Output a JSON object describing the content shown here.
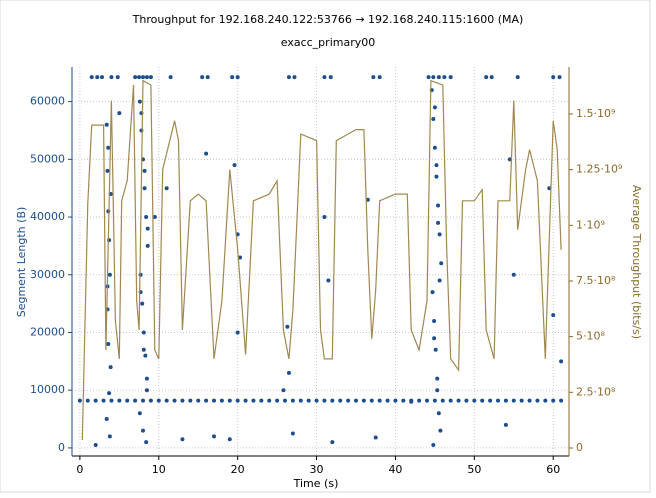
{
  "chart_data": {
    "type": "scatter",
    "title": "Throughput for 192.168.240.122:53766 → 192.168.240.115:1600 (MA)",
    "subtitle": "exacc_primary00",
    "x_label": "Time (s)",
    "y_label": "Segment Length (B)",
    "y2_label": "Average Throughput (bits/s)",
    "xlim": [
      -1,
      62
    ],
    "xticks": [
      0,
      10,
      20,
      30,
      40,
      50,
      60
    ],
    "ylim": [
      -1400,
      66000
    ],
    "yticks": [
      0,
      10000,
      20000,
      30000,
      40000,
      50000,
      60000
    ],
    "y2lim": [
      -36000000,
      1711000000
    ],
    "y2ticks": [
      0,
      {
        "value": 250000000,
        "label": "2.5·10⁸"
      },
      {
        "value": 500000000,
        "label": "5·10⁸"
      },
      {
        "value": 750000000,
        "label": "7.5·10⁸"
      },
      {
        "value": 1000000000,
        "label": "1·10⁹"
      },
      {
        "value": 1250000000,
        "label": "1.25·10⁹"
      },
      {
        "value": 1500000000,
        "label": "1.5·10⁹"
      }
    ],
    "grid": true,
    "series": [
      {
        "type": "scatter",
        "color": "#1f4e8c",
        "x": [
          0,
          1,
          2,
          3,
          4,
          5,
          6,
          7,
          8,
          9,
          10,
          11,
          12,
          13,
          14,
          15,
          16,
          17,
          18,
          19,
          20,
          21,
          22,
          23,
          24,
          25,
          26,
          27,
          28,
          29,
          30,
          31,
          32,
          33,
          34,
          35,
          36,
          37,
          38,
          39,
          40,
          41,
          42,
          43,
          44,
          45,
          46,
          47,
          48,
          49,
          50,
          51,
          52,
          53,
          54,
          55,
          56,
          57,
          58,
          59,
          60,
          61,
          1.5,
          2.2,
          2.8,
          4.0,
          4.8,
          7.0,
          7.5,
          8.0,
          8.5,
          9.0,
          11.5,
          15.5,
          16.2,
          19.3,
          20.0,
          26.5,
          27.2,
          31.0,
          31.8,
          37.2,
          38.0,
          44.2,
          44.8,
          45.5,
          46.2,
          47.0,
          51.5,
          52.2,
          55.5,
          60.0,
          60.8,
          3.4,
          3.5,
          3.6,
          3.7,
          3.8,
          3.5,
          3.6,
          3.9,
          3.7,
          3.4,
          3.8,
          3.6,
          3.5,
          3.9,
          7.6,
          7.8,
          8.0,
          8.2,
          8.4,
          8.6,
          7.7,
          7.9,
          8.1,
          8.3,
          8.5,
          7.6,
          8.0,
          8.4,
          7.8,
          8.2,
          8.6,
          7.7,
          8.1,
          8.5,
          44.6,
          44.8,
          45.0,
          45.2,
          45.4,
          45.6,
          45.8,
          44.7,
          44.9,
          45.1,
          45.3,
          45.5,
          45.7,
          44.8,
          45.0,
          45.2,
          45.4,
          45.6,
          44.9,
          45.3,
          19.6,
          20.0,
          20.0,
          19.0,
          26.3,
          26.5,
          27.0,
          31.0,
          31.5,
          32.0,
          36.5,
          37.5,
          25.8,
          55.0,
          54.5,
          54.0,
          60.0,
          59.5,
          61.0,
          17.0,
          13.0,
          11.0,
          16.0,
          2.0,
          5.0,
          9.5,
          20.3,
          42.0
        ],
        "values": [
          8192,
          8192,
          8192,
          8192,
          8192,
          8192,
          8192,
          8192,
          8192,
          8192,
          8192,
          8192,
          8192,
          8192,
          8192,
          8192,
          8192,
          8192,
          8192,
          8192,
          8192,
          8192,
          8192,
          8192,
          8192,
          8192,
          8192,
          8192,
          8192,
          8192,
          8192,
          8192,
          8192,
          8192,
          8192,
          8192,
          8192,
          8192,
          8192,
          8192,
          8192,
          8192,
          8192,
          8192,
          8192,
          8192,
          8192,
          8192,
          8192,
          8192,
          8192,
          8192,
          8192,
          8192,
          8192,
          8192,
          8192,
          8192,
          8192,
          8192,
          8192,
          8192,
          64240,
          64240,
          64240,
          64240,
          64240,
          64240,
          64240,
          64240,
          64240,
          64240,
          64240,
          64240,
          64240,
          64240,
          64240,
          64240,
          64240,
          64240,
          64240,
          64240,
          64240,
          64240,
          64240,
          64240,
          64240,
          64240,
          64240,
          64240,
          64240,
          64240,
          64240,
          56000,
          48000,
          41000,
          36000,
          30000,
          24000,
          18000,
          14000,
          9500,
          5000,
          2000,
          52000,
          28000,
          44000,
          60000,
          55000,
          50000,
          45000,
          40000,
          35000,
          30000,
          25000,
          20000,
          16000,
          12000,
          6000,
          3000,
          1000,
          58000,
          48000,
          38000,
          27000,
          17000,
          10000,
          62000,
          57000,
          52000,
          47000,
          42000,
          37000,
          32000,
          27000,
          22000,
          17000,
          12000,
          6000,
          3000,
          500,
          59000,
          49000,
          39000,
          29000,
          19000,
          10000,
          49000,
          37000,
          20000,
          1500,
          21000,
          13000,
          2500,
          40000,
          29000,
          1000,
          43000,
          1800,
          10000,
          30000,
          50000,
          4000,
          23000,
          45000,
          15000,
          2000,
          1500,
          45000,
          51000,
          500,
          58000,
          40000,
          33000,
          8000
        ]
      },
      {
        "type": "line",
        "axis": "y2",
        "color": "#a08850",
        "x": [
          0.3,
          1,
          1.5,
          3,
          3.3,
          4,
          4.5,
          5,
          5.3,
          6,
          6.8,
          7.2,
          7.5,
          8,
          9,
          9.5,
          10,
          10.5,
          12,
          12.5,
          13,
          14,
          15,
          16,
          17,
          18,
          19,
          20,
          21,
          22,
          24,
          25,
          25.8,
          26.5,
          27,
          28,
          30,
          30.5,
          31,
          32,
          32.5,
          34,
          35,
          36,
          36.5,
          37,
          37.5,
          38,
          40,
          41.5,
          42,
          43,
          44,
          44.5,
          46,
          46.5,
          47,
          48,
          48.5,
          50,
          51,
          51.5,
          52.5,
          53,
          54.5,
          55,
          55.5,
          56.5,
          57,
          58,
          59,
          60,
          60.5,
          61
        ],
        "values": [
          36000000,
          1100000000,
          1450000000,
          1450000000,
          440000000,
          1560000000,
          570000000,
          400000000,
          1110000000,
          1200000000,
          1630000000,
          660000000,
          530000000,
          1650000000,
          1630000000,
          440000000,
          400000000,
          1250000000,
          1470000000,
          1380000000,
          530000000,
          1110000000,
          1140000000,
          1110000000,
          400000000,
          660000000,
          1250000000,
          890000000,
          420000000,
          1110000000,
          1140000000,
          1200000000,
          530000000,
          400000000,
          620000000,
          1410000000,
          1380000000,
          530000000,
          400000000,
          400000000,
          1380000000,
          1410000000,
          1430000000,
          1430000000,
          890000000,
          490000000,
          710000000,
          1110000000,
          1140000000,
          1140000000,
          530000000,
          440000000,
          660000000,
          1650000000,
          1630000000,
          890000000,
          400000000,
          350000000,
          1110000000,
          1110000000,
          1160000000,
          530000000,
          400000000,
          1110000000,
          1110000000,
          1560000000,
          980000000,
          1250000000,
          1340000000,
          1200000000,
          400000000,
          1470000000,
          1340000000,
          890000000
        ]
      }
    ]
  }
}
